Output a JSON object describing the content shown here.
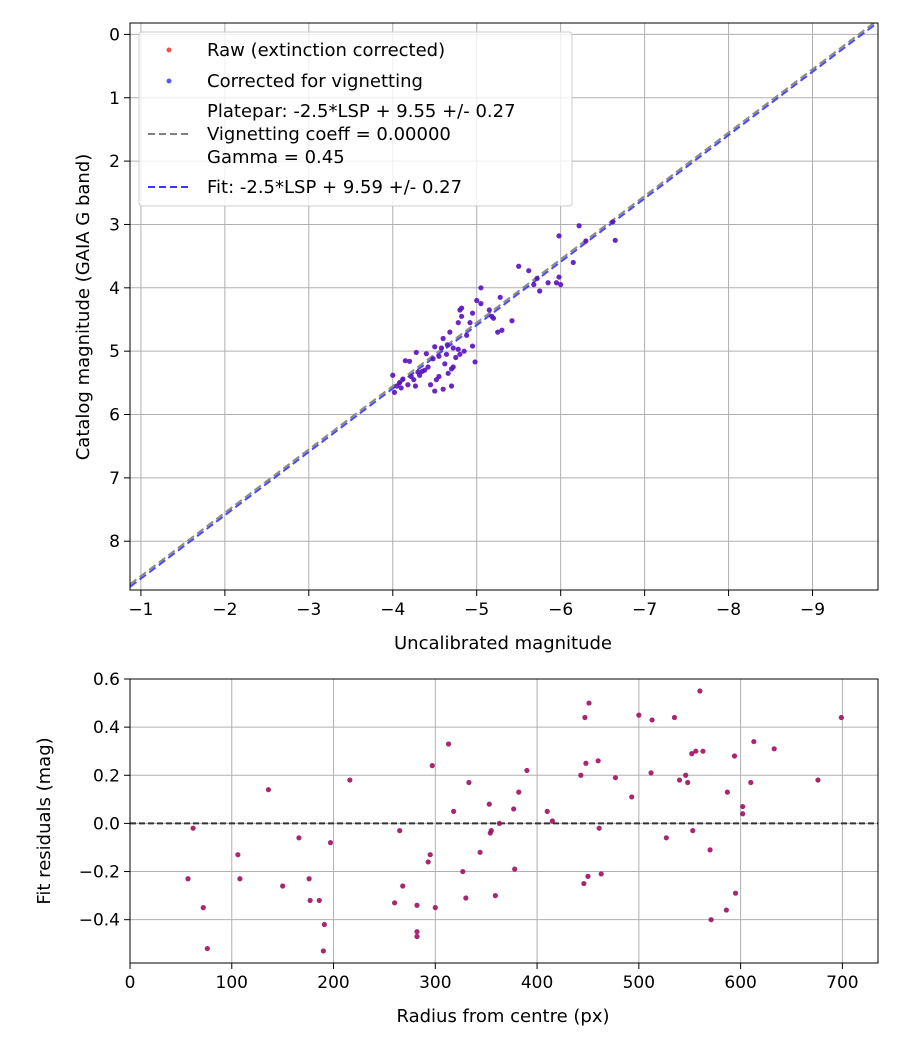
{
  "chart_data": [
    {
      "type": "scatter",
      "xlabel": "Uncalibrated magnitude",
      "ylabel": "Catalog magnitude (GAIA G band)",
      "xlim": [
        -0.87,
        -9.78
      ],
      "ylim": [
        8.77,
        -0.18
      ],
      "x_inverted": true,
      "y_inverted": true,
      "xticks": [
        -1,
        -2,
        -3,
        -4,
        -5,
        -6,
        -7,
        -8,
        -9
      ],
      "xtick_labels": [
        "−1",
        "−2",
        "−3",
        "−4",
        "−5",
        "−6",
        "−7",
        "−8",
        "−9"
      ],
      "yticks": [
        0,
        1,
        2,
        3,
        4,
        5,
        6,
        7,
        8
      ],
      "ytick_labels": [
        "0",
        "1",
        "2",
        "3",
        "4",
        "5",
        "6",
        "7",
        "8"
      ],
      "grid": true,
      "legend_position": "upper-left",
      "legend": [
        {
          "label": "Raw (extinction corrected)",
          "kind": "marker",
          "color": "#f0524a"
        },
        {
          "label": "Corrected for vignetting",
          "kind": "marker",
          "color": "#5a5af5"
        },
        {
          "label": "Platepar: -2.5*LSP + 9.55 +/- 0.27",
          "kind": "none",
          "color": ""
        },
        {
          "label": "Vignetting coeff = 0.00000",
          "kind": "dashed",
          "color": "#808080"
        },
        {
          "label": "Gamma = 0.45",
          "kind": "none",
          "color": ""
        },
        {
          "label": "Fit: -2.5*LSP + 9.59 +/- 0.27",
          "kind": "dashed",
          "color": "#3838f0"
        }
      ],
      "lines": [
        {
          "name": "Platepar",
          "slope": 1,
          "intercept": 9.55,
          "color": "#808080",
          "style": "dashed"
        },
        {
          "name": "Fit",
          "slope": 1,
          "intercept": 9.59,
          "color": "#3838f0",
          "style": "dashed"
        }
      ],
      "series": [
        {
          "name": "Corrected for vignetting",
          "color": "#5a10c0",
          "points": [
            [
              -4.0,
              5.38
            ],
            [
              -4.02,
              5.65
            ],
            [
              -4.05,
              5.55
            ],
            [
              -4.08,
              5.5
            ],
            [
              -4.1,
              5.58
            ],
            [
              -4.12,
              5.44
            ],
            [
              -4.15,
              5.15
            ],
            [
              -4.18,
              5.53
            ],
            [
              -4.2,
              5.16
            ],
            [
              -4.22,
              5.4
            ],
            [
              -4.25,
              5.45
            ],
            [
              -4.27,
              5.55
            ],
            [
              -4.28,
              5.02
            ],
            [
              -4.3,
              5.33
            ],
            [
              -4.32,
              5.38
            ],
            [
              -4.35,
              5.32
            ],
            [
              -4.38,
              5.3
            ],
            [
              -4.4,
              5.04
            ],
            [
              -4.42,
              5.25
            ],
            [
              -4.45,
              5.53
            ],
            [
              -4.48,
              5.12
            ],
            [
              -4.5,
              5.63
            ],
            [
              -4.5,
              4.93
            ],
            [
              -4.52,
              5.45
            ],
            [
              -4.55,
              5.4
            ],
            [
              -4.55,
              5.08
            ],
            [
              -4.58,
              4.95
            ],
            [
              -4.6,
              5.6
            ],
            [
              -4.6,
              4.8
            ],
            [
              -4.62,
              5.2
            ],
            [
              -4.64,
              5.05
            ],
            [
              -4.65,
              4.9
            ],
            [
              -4.66,
              5.35
            ],
            [
              -4.68,
              4.7
            ],
            [
              -4.7,
              5.55
            ],
            [
              -4.7,
              5.28
            ],
            [
              -4.72,
              5.25
            ],
            [
              -4.72,
              4.95
            ],
            [
              -4.75,
              5.1
            ],
            [
              -4.78,
              4.97
            ],
            [
              -4.78,
              4.55
            ],
            [
              -4.8,
              5.05
            ],
            [
              -4.8,
              4.35
            ],
            [
              -4.82,
              4.32
            ],
            [
              -4.82,
              4.45
            ],
            [
              -4.85,
              5.0
            ],
            [
              -4.88,
              4.75
            ],
            [
              -4.92,
              4.55
            ],
            [
              -4.95,
              4.92
            ],
            [
              -4.95,
              4.4
            ],
            [
              -4.98,
              5.17
            ],
            [
              -5.0,
              4.2
            ],
            [
              -5.05,
              4.0
            ],
            [
              -5.05,
              4.25
            ],
            [
              -5.15,
              4.35
            ],
            [
              -5.18,
              4.45
            ],
            [
              -5.2,
              4.48
            ],
            [
              -5.25,
              4.7
            ],
            [
              -5.28,
              4.15
            ],
            [
              -5.3,
              4.67
            ],
            [
              -5.42,
              4.52
            ],
            [
              -5.5,
              3.66
            ],
            [
              -5.62,
              3.73
            ],
            [
              -5.68,
              3.95
            ],
            [
              -5.72,
              3.85
            ],
            [
              -5.75,
              4.05
            ],
            [
              -5.85,
              3.92
            ],
            [
              -5.95,
              3.92
            ],
            [
              -5.98,
              3.18
            ],
            [
              -5.98,
              3.83
            ],
            [
              -6.0,
              3.95
            ],
            [
              -6.15,
              3.6
            ],
            [
              -6.22,
              3.02
            ],
            [
              -6.3,
              3.26
            ],
            [
              -6.62,
              2.96
            ],
            [
              -6.65,
              3.25
            ]
          ]
        }
      ]
    },
    {
      "type": "scatter",
      "xlabel": "Radius from centre (px)",
      "ylabel": "Fit residuals (mag)",
      "xlim": [
        0,
        735
      ],
      "ylim": [
        -0.58,
        0.6
      ],
      "xticks": [
        0,
        100,
        200,
        300,
        400,
        500,
        600,
        700
      ],
      "xtick_labels": [
        "0",
        "100",
        "200",
        "300",
        "400",
        "500",
        "600",
        "700"
      ],
      "yticks": [
        -0.4,
        -0.2,
        0.0,
        0.2,
        0.4,
        0.6
      ],
      "ytick_labels": [
        "−0.4",
        "−0.2",
        "0.0",
        "0.2",
        "0.4",
        "0.6"
      ],
      "grid": true,
      "zero_line": {
        "y": 0,
        "color": "#333333",
        "style": "dashed"
      },
      "series": [
        {
          "name": "",
          "color": "#a01060",
          "points": [
            [
              57,
              -0.23
            ],
            [
              62,
              -0.02
            ],
            [
              72,
              -0.35
            ],
            [
              76,
              -0.52
            ],
            [
              106,
              -0.13
            ],
            [
              108,
              -0.23
            ],
            [
              136,
              0.14
            ],
            [
              150,
              -0.26
            ],
            [
              166,
              -0.06
            ],
            [
              176,
              -0.23
            ],
            [
              177,
              -0.32
            ],
            [
              186,
              -0.32
            ],
            [
              190,
              -0.53
            ],
            [
              191,
              -0.42
            ],
            [
              197,
              -0.08
            ],
            [
              216,
              0.18
            ],
            [
              260,
              -0.33
            ],
            [
              265,
              -0.03
            ],
            [
              268,
              -0.26
            ],
            [
              282,
              -0.45
            ],
            [
              282,
              -0.47
            ],
            [
              282,
              -0.34
            ],
            [
              293,
              -0.16
            ],
            [
              295,
              -0.13
            ],
            [
              297,
              0.24
            ],
            [
              300,
              -0.35
            ],
            [
              313,
              0.33
            ],
            [
              318,
              0.05
            ],
            [
              327,
              -0.2
            ],
            [
              330,
              -0.31
            ],
            [
              333,
              0.17
            ],
            [
              344,
              -0.12
            ],
            [
              353,
              0.08
            ],
            [
              354,
              -0.04
            ],
            [
              355,
              -0.03
            ],
            [
              359,
              -0.3
            ],
            [
              363,
              0.0
            ],
            [
              377,
              0.06
            ],
            [
              378,
              -0.19
            ],
            [
              382,
              0.13
            ],
            [
              390,
              0.22
            ],
            [
              410,
              0.05
            ],
            [
              415,
              0.01
            ],
            [
              443,
              0.2
            ],
            [
              446,
              -0.25
            ],
            [
              447,
              0.44
            ],
            [
              448,
              0.25
            ],
            [
              450,
              -0.22
            ],
            [
              451,
              0.5
            ],
            [
              460,
              0.26
            ],
            [
              461,
              -0.02
            ],
            [
              463,
              -0.21
            ],
            [
              477,
              0.19
            ],
            [
              493,
              0.11
            ],
            [
              500,
              0.45
            ],
            [
              512,
              0.21
            ],
            [
              513,
              0.43
            ],
            [
              527,
              -0.06
            ],
            [
              535,
              0.44
            ],
            [
              540,
              0.18
            ],
            [
              546,
              0.2
            ],
            [
              548,
              0.17
            ],
            [
              552,
              0.29
            ],
            [
              553,
              -0.03
            ],
            [
              556,
              0.3
            ],
            [
              560,
              0.55
            ],
            [
              563,
              0.3
            ],
            [
              570,
              -0.11
            ],
            [
              571,
              -0.4
            ],
            [
              586,
              -0.36
            ],
            [
              587,
              0.13
            ],
            [
              594,
              0.28
            ],
            [
              595,
              -0.29
            ],
            [
              602,
              0.07
            ],
            [
              602,
              0.04
            ],
            [
              610,
              0.17
            ],
            [
              613,
              0.34
            ],
            [
              633,
              0.31
            ],
            [
              676,
              0.18
            ],
            [
              699,
              0.44
            ]
          ]
        }
      ]
    }
  ]
}
